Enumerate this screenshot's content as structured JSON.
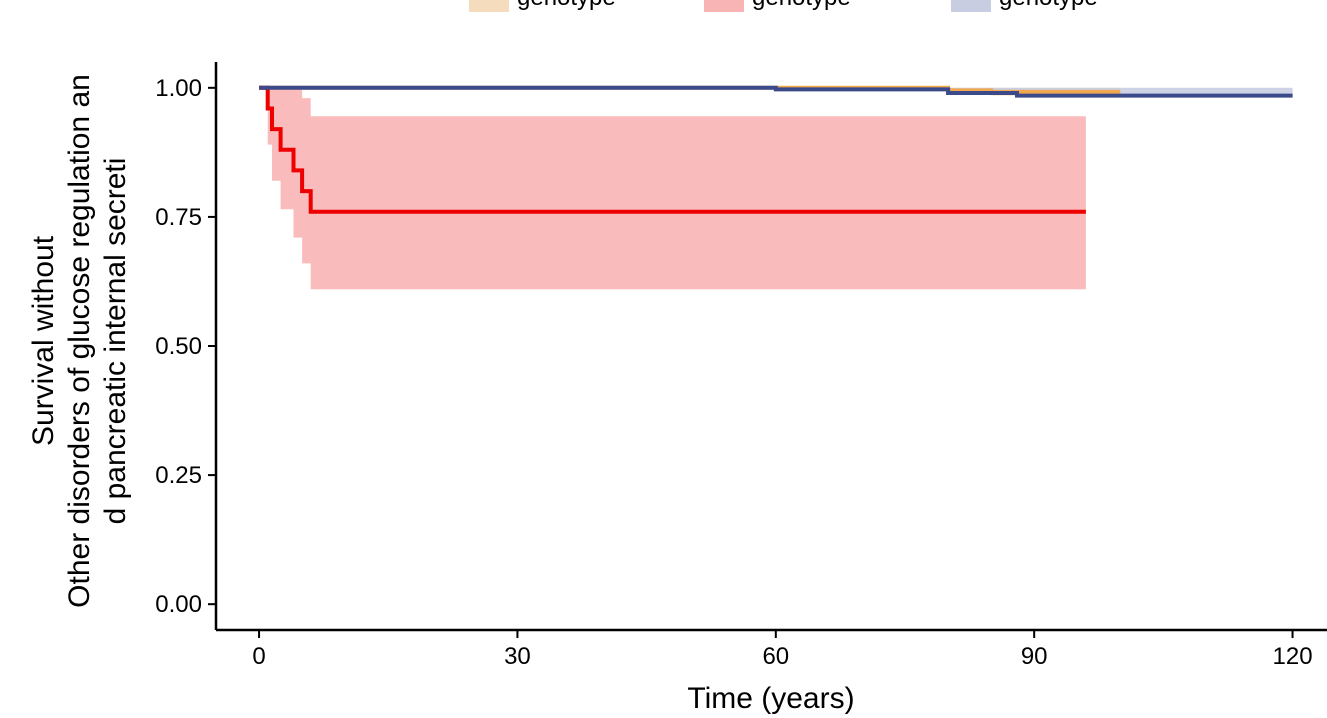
{
  "chart_data": {
    "type": "line",
    "xlabel": "Time (years)",
    "ylabel_lines": [
      "Survival without",
      "Other disorders of glucose regulation an",
      "d pancreatic internal secreti"
    ],
    "xlim": [
      -5,
      124
    ],
    "ylim": [
      -0.05,
      1.05
    ],
    "x_ticks": [
      0,
      30,
      60,
      90,
      120
    ],
    "x_tick_labels": [
      "0",
      "30",
      "60",
      "90",
      "120"
    ],
    "y_ticks": [
      0.0,
      0.25,
      0.5,
      0.75,
      1.0
    ],
    "y_tick_labels": [
      "0.00",
      "0.25",
      "0.50",
      "0.75",
      "1.00"
    ],
    "grid": false,
    "legend_position": "top",
    "series": [
      {
        "name": "genotype",
        "color": "#f3a74e",
        "fill_color": "#f5dcbd",
        "steps": [
          [
            0,
            1.0
          ],
          [
            80,
            0.995
          ],
          [
            85,
            0.992
          ],
          [
            100,
            0.992
          ]
        ],
        "ci_upper": [
          [
            0,
            1.0
          ],
          [
            100,
            1.0
          ]
        ],
        "ci_lower": [
          [
            0,
            0.998
          ],
          [
            80,
            0.99
          ],
          [
            85,
            0.985
          ],
          [
            100,
            0.985
          ]
        ]
      },
      {
        "name": "genotype",
        "color": "#ee0000",
        "fill_color": "#f8b4b4",
        "steps": [
          [
            0,
            1.0
          ],
          [
            1,
            0.96
          ],
          [
            1.5,
            0.92
          ],
          [
            2.5,
            0.88
          ],
          [
            4,
            0.84
          ],
          [
            5,
            0.8
          ],
          [
            6,
            0.76
          ],
          [
            96,
            0.76
          ]
        ],
        "ci_upper": [
          [
            0,
            1.0
          ],
          [
            5,
            0.98
          ],
          [
            6,
            0.945
          ],
          [
            96,
            0.945
          ]
        ],
        "ci_lower": [
          [
            0,
            1.0
          ],
          [
            1,
            0.89
          ],
          [
            1.5,
            0.82
          ],
          [
            2.5,
            0.765
          ],
          [
            4,
            0.71
          ],
          [
            5,
            0.66
          ],
          [
            6,
            0.61
          ],
          [
            96,
            0.61
          ]
        ]
      },
      {
        "name": "genotype",
        "color": "#3b4a8b",
        "fill_color": "#c8cde2",
        "steps": [
          [
            0,
            1.0
          ],
          [
            60,
            0.997
          ],
          [
            80,
            0.99
          ],
          [
            88,
            0.985
          ],
          [
            120,
            0.985
          ]
        ],
        "ci_upper": [
          [
            0,
            1.0
          ],
          [
            120,
            0.988
          ]
        ],
        "ci_lower": [
          [
            0,
            0.999
          ],
          [
            60,
            0.995
          ],
          [
            80,
            0.987
          ],
          [
            88,
            0.982
          ],
          [
            120,
            0.982
          ]
        ]
      }
    ]
  }
}
